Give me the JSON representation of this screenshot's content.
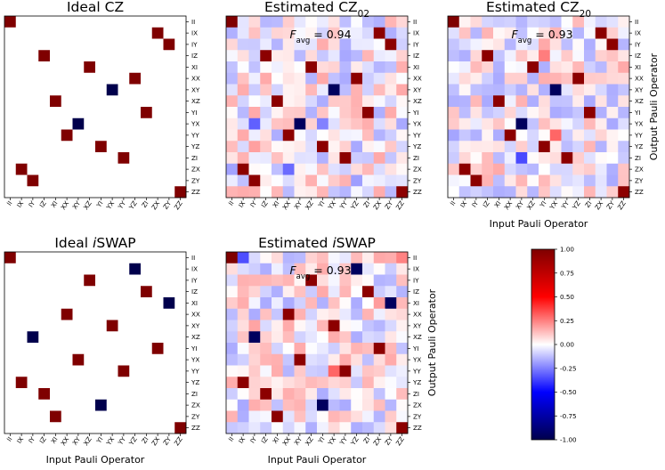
{
  "chart_data": {
    "type": "heatmap",
    "labels": [
      "II",
      "IX",
      "IY",
      "IZ",
      "XI",
      "XX",
      "XY",
      "XZ",
      "YI",
      "YX",
      "YY",
      "YZ",
      "ZI",
      "ZX",
      "ZY",
      "ZZ"
    ],
    "xlabel": "Input Pauli Operator",
    "ylabel": "Output Pauli Operator",
    "colormap": {
      "name": "seismic",
      "vmin": -1.0,
      "vmax": 1.0,
      "ticks": [
        "1.00",
        "0.75",
        "0.50",
        "0.25",
        "0.00",
        "-0.25",
        "-0.50",
        "-0.75",
        "-1.00"
      ],
      "neg_color": "#00004c",
      "mid_color": "#ffffff",
      "pos_color": "#7f0000"
    },
    "panels": [
      {
        "id": "ideal-cz",
        "title_pre": "Ideal CZ",
        "title_italic": "",
        "title_post": "",
        "title_sub": "",
        "favg_value": "",
        "show_xlabel": false,
        "show_ylabel": false,
        "ideal": [
          [
            0,
            0,
            1
          ],
          [
            1,
            13,
            1
          ],
          [
            2,
            14,
            1
          ],
          [
            3,
            3,
            1
          ],
          [
            4,
            7,
            1
          ],
          [
            5,
            11,
            1
          ],
          [
            6,
            9,
            -1
          ],
          [
            7,
            4,
            1
          ],
          [
            8,
            12,
            1
          ],
          [
            9,
            6,
            -1
          ],
          [
            10,
            5,
            1
          ],
          [
            11,
            8,
            1
          ],
          [
            12,
            10,
            1
          ],
          [
            13,
            1,
            1
          ],
          [
            14,
            2,
            1
          ],
          [
            15,
            15,
            1
          ]
        ],
        "seed": 0,
        "noise": false
      },
      {
        "id": "estimated-cz02",
        "title_pre": "Estimated CZ",
        "title_italic": "",
        "title_post": "",
        "title_sub": "02",
        "favg_value": "= 0.94",
        "show_xlabel": false,
        "show_ylabel": false,
        "ideal": [
          [
            0,
            0,
            1
          ],
          [
            1,
            13,
            1
          ],
          [
            2,
            14,
            1
          ],
          [
            3,
            3,
            1
          ],
          [
            4,
            7,
            1
          ],
          [
            5,
            11,
            1
          ],
          [
            6,
            9,
            -1
          ],
          [
            7,
            4,
            1
          ],
          [
            8,
            12,
            1
          ],
          [
            9,
            6,
            -1
          ],
          [
            10,
            5,
            1
          ],
          [
            11,
            8,
            1
          ],
          [
            12,
            10,
            1
          ],
          [
            13,
            1,
            1
          ],
          [
            14,
            2,
            1
          ],
          [
            15,
            15,
            1
          ]
        ],
        "seed": 11,
        "noise": true
      },
      {
        "id": "estimated-cz20",
        "title_pre": "Estimated CZ",
        "title_italic": "",
        "title_post": "",
        "title_sub": "20",
        "favg_value": "= 0.93",
        "show_xlabel": true,
        "show_ylabel": true,
        "ideal": [
          [
            0,
            0,
            1
          ],
          [
            1,
            13,
            1
          ],
          [
            2,
            14,
            1
          ],
          [
            3,
            3,
            1
          ],
          [
            4,
            7,
            1
          ],
          [
            5,
            11,
            1
          ],
          [
            6,
            9,
            -1
          ],
          [
            7,
            4,
            1
          ],
          [
            8,
            12,
            1
          ],
          [
            9,
            6,
            -1
          ],
          [
            10,
            5,
            1
          ],
          [
            11,
            8,
            1
          ],
          [
            12,
            10,
            1
          ],
          [
            13,
            1,
            1
          ],
          [
            14,
            2,
            1
          ],
          [
            15,
            15,
            1
          ]
        ],
        "seed": 23,
        "noise": true
      },
      {
        "id": "ideal-iswap",
        "title_pre": "Ideal ",
        "title_italic": "i",
        "title_post": "SWAP",
        "title_sub": "",
        "favg_value": "",
        "show_xlabel": true,
        "show_ylabel": false,
        "ideal": [
          [
            0,
            0,
            1
          ],
          [
            1,
            11,
            -1
          ],
          [
            2,
            7,
            1
          ],
          [
            3,
            12,
            1
          ],
          [
            4,
            14,
            -1
          ],
          [
            5,
            5,
            1
          ],
          [
            6,
            9,
            1
          ],
          [
            7,
            2,
            -1
          ],
          [
            8,
            13,
            1
          ],
          [
            9,
            6,
            1
          ],
          [
            10,
            10,
            1
          ],
          [
            11,
            1,
            1
          ],
          [
            12,
            3,
            1
          ],
          [
            13,
            8,
            -1
          ],
          [
            14,
            4,
            1
          ],
          [
            15,
            15,
            1
          ]
        ],
        "seed": 0,
        "noise": false
      },
      {
        "id": "estimated-iswap",
        "title_pre": "Estimated ",
        "title_italic": "i",
        "title_post": "SWAP",
        "title_sub": "",
        "favg_value": "= 0.93",
        "show_xlabel": true,
        "show_ylabel": true,
        "ideal": [
          [
            0,
            0,
            1
          ],
          [
            1,
            11,
            -1
          ],
          [
            2,
            7,
            1
          ],
          [
            3,
            12,
            1
          ],
          [
            4,
            14,
            -1
          ],
          [
            5,
            5,
            1
          ],
          [
            6,
            9,
            1
          ],
          [
            7,
            2,
            -1
          ],
          [
            8,
            13,
            1
          ],
          [
            9,
            6,
            1
          ],
          [
            10,
            10,
            1
          ],
          [
            11,
            1,
            1
          ],
          [
            12,
            3,
            1
          ],
          [
            13,
            8,
            -1
          ],
          [
            14,
            4,
            1
          ],
          [
            15,
            15,
            1
          ]
        ],
        "seed": 37,
        "noise": true
      }
    ],
    "favg_label": "F",
    "favg_sub": "avg"
  }
}
